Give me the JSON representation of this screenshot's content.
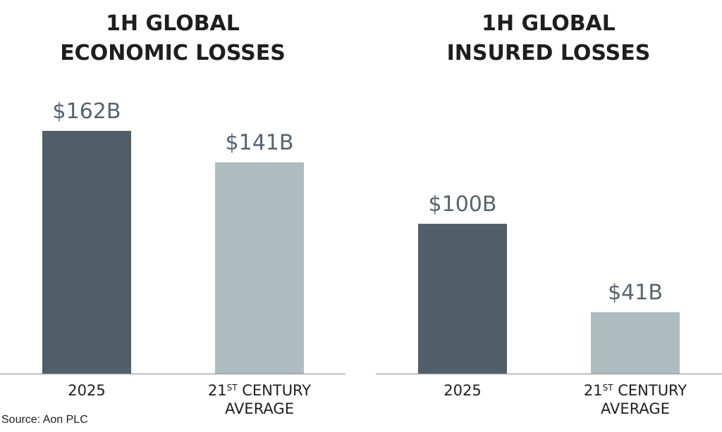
{
  "source": "Source: Aon PLC",
  "chart_data": [
    {
      "type": "bar",
      "title": [
        "1H GLOBAL",
        "ECONOMIC LOSSES"
      ],
      "categories": [
        {
          "lines": [
            {
              "main": "2025"
            }
          ]
        },
        {
          "lines": [
            {
              "main": "21",
              "sup": "ST",
              "rest": " CENTURY"
            },
            {
              "main": "AVERAGE"
            }
          ]
        }
      ],
      "values": [
        162,
        141
      ],
      "value_labels": [
        "$162B",
        "$141B"
      ],
      "colors": [
        "#505f6a",
        "#aebcc0"
      ],
      "ylim": [
        0,
        180
      ]
    },
    {
      "type": "bar",
      "title": [
        "1H GLOBAL",
        "INSURED LOSSES"
      ],
      "categories": [
        {
          "lines": [
            {
              "main": "2025"
            }
          ]
        },
        {
          "lines": [
            {
              "main": "21",
              "sup": "ST",
              "rest": " CENTURY"
            },
            {
              "main": "AVERAGE"
            }
          ]
        }
      ],
      "values": [
        100,
        41
      ],
      "value_labels": [
        "$100B",
        "$41B"
      ],
      "colors": [
        "#505f6a",
        "#aebcc0"
      ],
      "ylim": [
        0,
        180
      ]
    }
  ]
}
